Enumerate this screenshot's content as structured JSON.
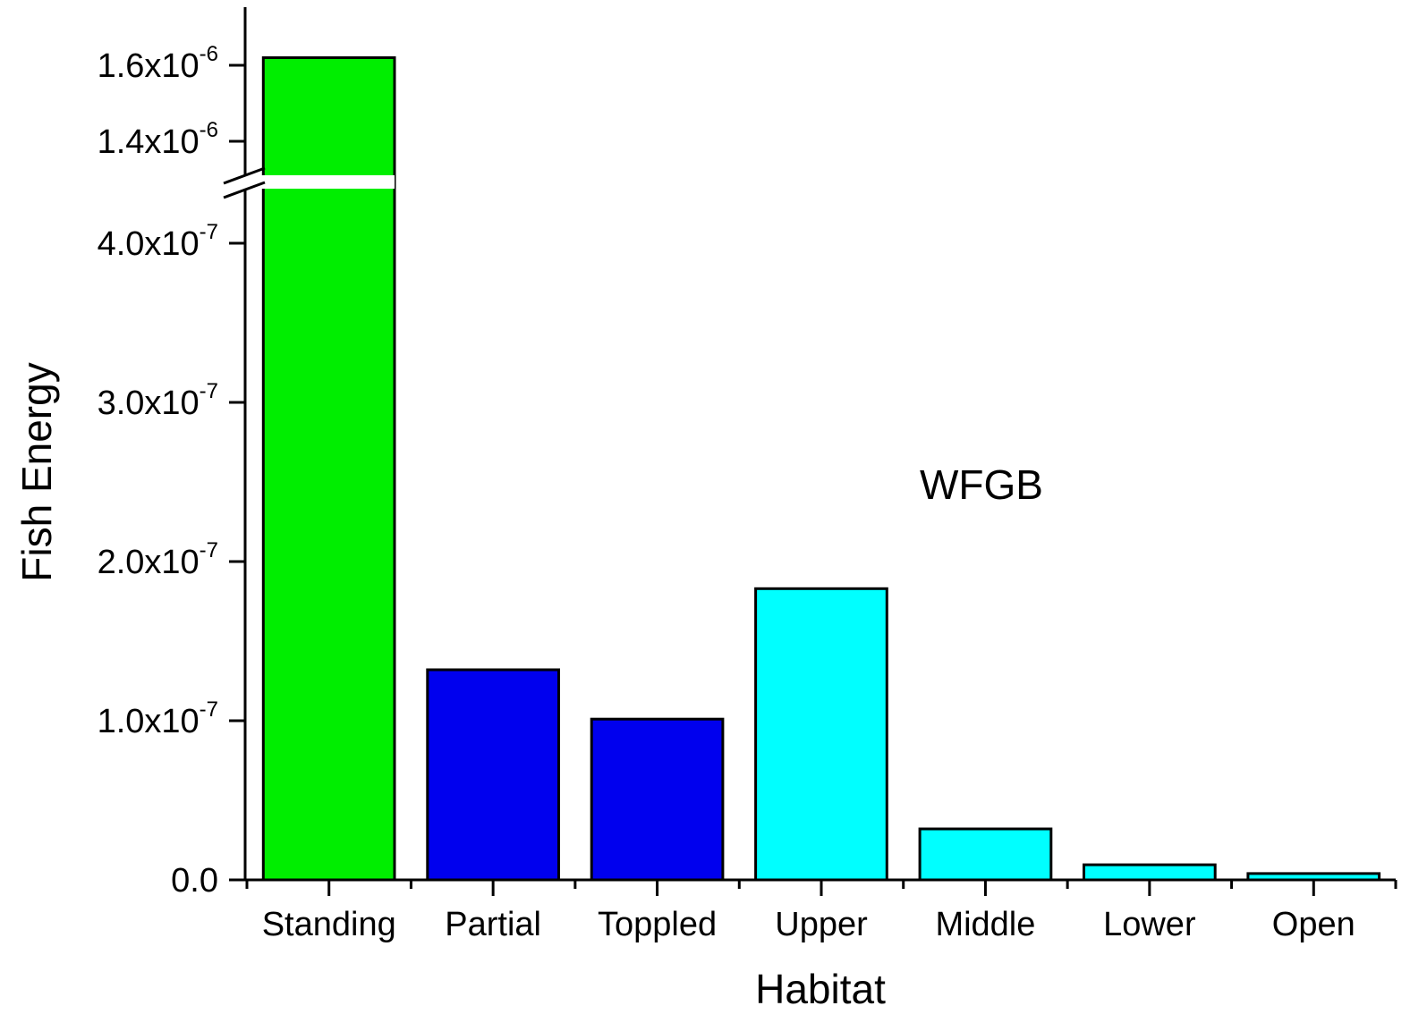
{
  "chart_data": {
    "type": "bar",
    "title": "",
    "xlabel": "Habitat",
    "ylabel": "Fish Energy",
    "annotation": "WFGB",
    "categories": [
      "Standing",
      "Partial",
      "Toppled",
      "Upper",
      "Middle",
      "Lower",
      "Open"
    ],
    "values": [
      1.62e-06,
      1.32e-07,
      1.01e-07,
      1.83e-07,
      3.2e-08,
      9.5e-09,
      4e-09
    ],
    "bar_colors": [
      "#00ee00",
      "#0000ee",
      "#0000ee",
      "#00ffff",
      "#00ffff",
      "#00ffff",
      "#00ffff"
    ],
    "y_axis_break": {
      "lower_max": 4.3e-07,
      "upper_min": 1.3e-06
    },
    "ylim_lower": [
      0,
      4.3e-07
    ],
    "ylim_upper": [
      1.3e-06,
      1.7e-06
    ],
    "lower_ticks": [
      {
        "value": 0,
        "mantissa": "0.0",
        "exp": ""
      },
      {
        "value": 1e-07,
        "mantissa": "1.0x10",
        "exp": "-7"
      },
      {
        "value": 2e-07,
        "mantissa": "2.0x10",
        "exp": "-7"
      },
      {
        "value": 3e-07,
        "mantissa": "3.0x10",
        "exp": "-7"
      },
      {
        "value": 4e-07,
        "mantissa": "4.0x10",
        "exp": "-7"
      }
    ],
    "upper_ticks": [
      {
        "value": 1.4e-06,
        "mantissa": "1.4x10",
        "exp": "-6"
      },
      {
        "value": 1.6e-06,
        "mantissa": "1.6x10",
        "exp": "-6"
      }
    ],
    "grid": false,
    "legend": "none"
  }
}
